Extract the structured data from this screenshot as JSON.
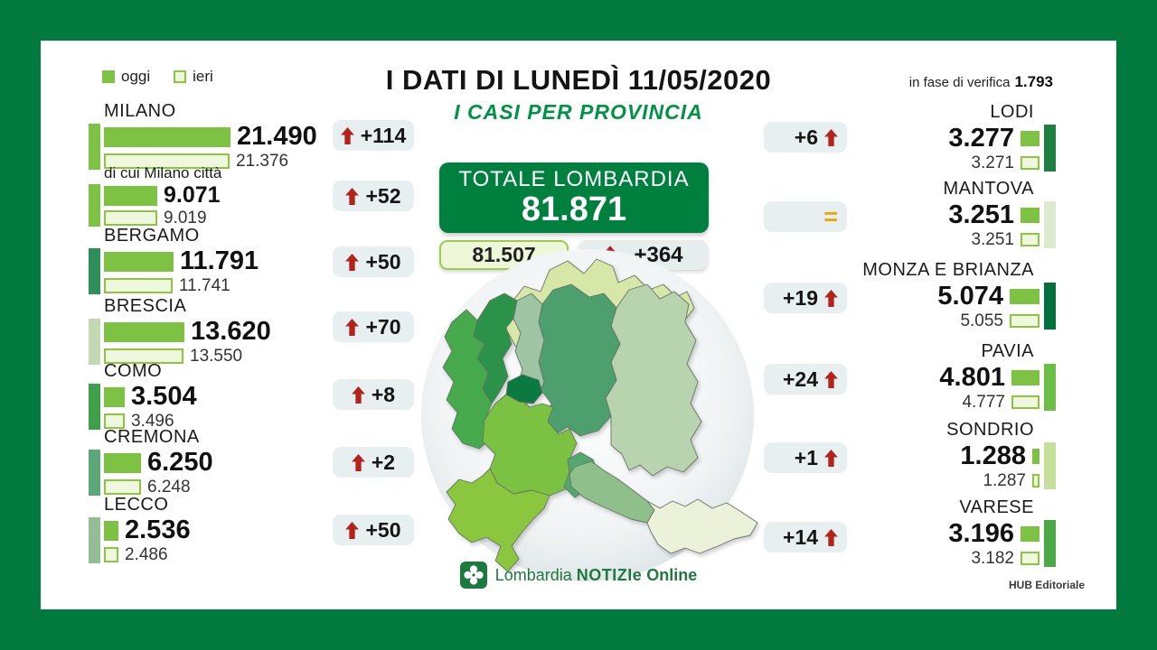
{
  "header": {
    "title": "I DATI DI LUNEDÌ 11/05/2020",
    "subtitle": "I CASI PER PROVINCIA",
    "verification_label": "in fase di verifica",
    "verification_value": "1.793",
    "legend": {
      "today": "oggi",
      "yesterday": "ieri"
    }
  },
  "totale": {
    "label": "TOTALE LOMBARDIA",
    "value": "81.871",
    "yesterday": "81.507",
    "delta": "+364"
  },
  "provinces_left": [
    {
      "name": "MILANO",
      "today": "21.490",
      "yesterday": "21.376",
      "today_n": 21490,
      "yesterday_n": 21376,
      "delta": "+114",
      "accent": "#7dc242"
    },
    {
      "name": "di cui Milano città",
      "today": "9.071",
      "yesterday": "9.019",
      "today_n": 9071,
      "yesterday_n": 9019,
      "delta": "+52",
      "accent": "#7dc242"
    },
    {
      "name": "BERGAMO",
      "today": "11.791",
      "yesterday": "11.741",
      "today_n": 11791,
      "yesterday_n": 11741,
      "delta": "+50",
      "accent": "#2f8f5b"
    },
    {
      "name": "BRESCIA",
      "today": "13.620",
      "yesterday": "13.550",
      "today_n": 13620,
      "yesterday_n": 13550,
      "delta": "+70",
      "accent": "#c2d9b4"
    },
    {
      "name": "COMO",
      "today": "3.504",
      "yesterday": "3.496",
      "today_n": 3504,
      "yesterday_n": 3496,
      "delta": "+8",
      "accent": "#3fa04c"
    },
    {
      "name": "CREMONA",
      "today": "6.250",
      "yesterday": "6.248",
      "today_n": 6250,
      "yesterday_n": 6248,
      "delta": "+2",
      "accent": "#5aa878"
    },
    {
      "name": "LECCO",
      "today": "2.536",
      "yesterday": "2.486",
      "today_n": 2536,
      "yesterday_n": 2486,
      "delta": "+50",
      "accent": "#93bd97"
    }
  ],
  "provinces_right": [
    {
      "name": "LODI",
      "today": "3.277",
      "yesterday": "3.271",
      "today_n": 3277,
      "yesterday_n": 3271,
      "delta": "+6",
      "accent": "#1d8040"
    },
    {
      "name": "MANTOVA",
      "today": "3.251",
      "yesterday": "3.251",
      "today_n": 3251,
      "yesterday_n": 3251,
      "delta": "=",
      "accent": "#dcead0"
    },
    {
      "name": "MONZA E BRIANZA",
      "today": "5.074",
      "yesterday": "5.055",
      "today_n": 5074,
      "yesterday_n": 5055,
      "delta": "+19",
      "accent": "#00703c"
    },
    {
      "name": "PAVIA",
      "today": "4.801",
      "yesterday": "4.777",
      "today_n": 4801,
      "yesterday_n": 4777,
      "delta": "+24",
      "accent": "#6cbf45"
    },
    {
      "name": "SONDRIO",
      "today": "1.288",
      "yesterday": "1.287",
      "today_n": 1288,
      "yesterday_n": 1287,
      "delta": "+1",
      "accent": "#c5e09a"
    },
    {
      "name": "VARESE",
      "today": "3.196",
      "yesterday": "3.182",
      "today_n": 3196,
      "yesterday_n": 3182,
      "delta": "+14",
      "accent": "#4ba945"
    }
  ],
  "footer": {
    "logo_lombardia": "Lombardia",
    "logo_notizie": "NOTIZIe",
    "logo_online": "Online",
    "credit": "HUB Editoriale"
  },
  "colors": {
    "frame_green": "#007a3d",
    "totale_green": "#00803f",
    "oggi_green": "#7dc242",
    "ieri_fill": "#f0f7df",
    "ieri_border": "#8cc63f",
    "badge_gray": "#e7eff1",
    "arrow_red": "#b3231b",
    "equal_orange": "#f2a400",
    "subtitle_green": "#009245"
  },
  "chart_data": {
    "type": "bar",
    "title": "I DATI DI LUNEDÌ 11/05/2020 — I CASI PER PROVINCIA",
    "categories": [
      "Milano",
      "Milano città",
      "Bergamo",
      "Brescia",
      "Como",
      "Cremona",
      "Lecco",
      "Lodi",
      "Mantova",
      "Monza e Brianza",
      "Pavia",
      "Sondrio",
      "Varese"
    ],
    "series": [
      {
        "name": "oggi",
        "values": [
          21490,
          9071,
          11791,
          13620,
          3504,
          6250,
          2536,
          3277,
          3251,
          5074,
          4801,
          1288,
          3196
        ]
      },
      {
        "name": "ieri",
        "values": [
          21376,
          9019,
          11741,
          13550,
          3496,
          6248,
          2486,
          3271,
          3251,
          5055,
          4777,
          1287,
          3182
        ]
      }
    ],
    "deltas": [
      114,
      52,
      50,
      70,
      8,
      2,
      50,
      6,
      0,
      19,
      24,
      1,
      14
    ],
    "total_today": 81871,
    "total_yesterday": 81507,
    "total_delta": 364,
    "in_verifica": 1793,
    "legend_position": "top-left",
    "orientation": "horizontal"
  }
}
